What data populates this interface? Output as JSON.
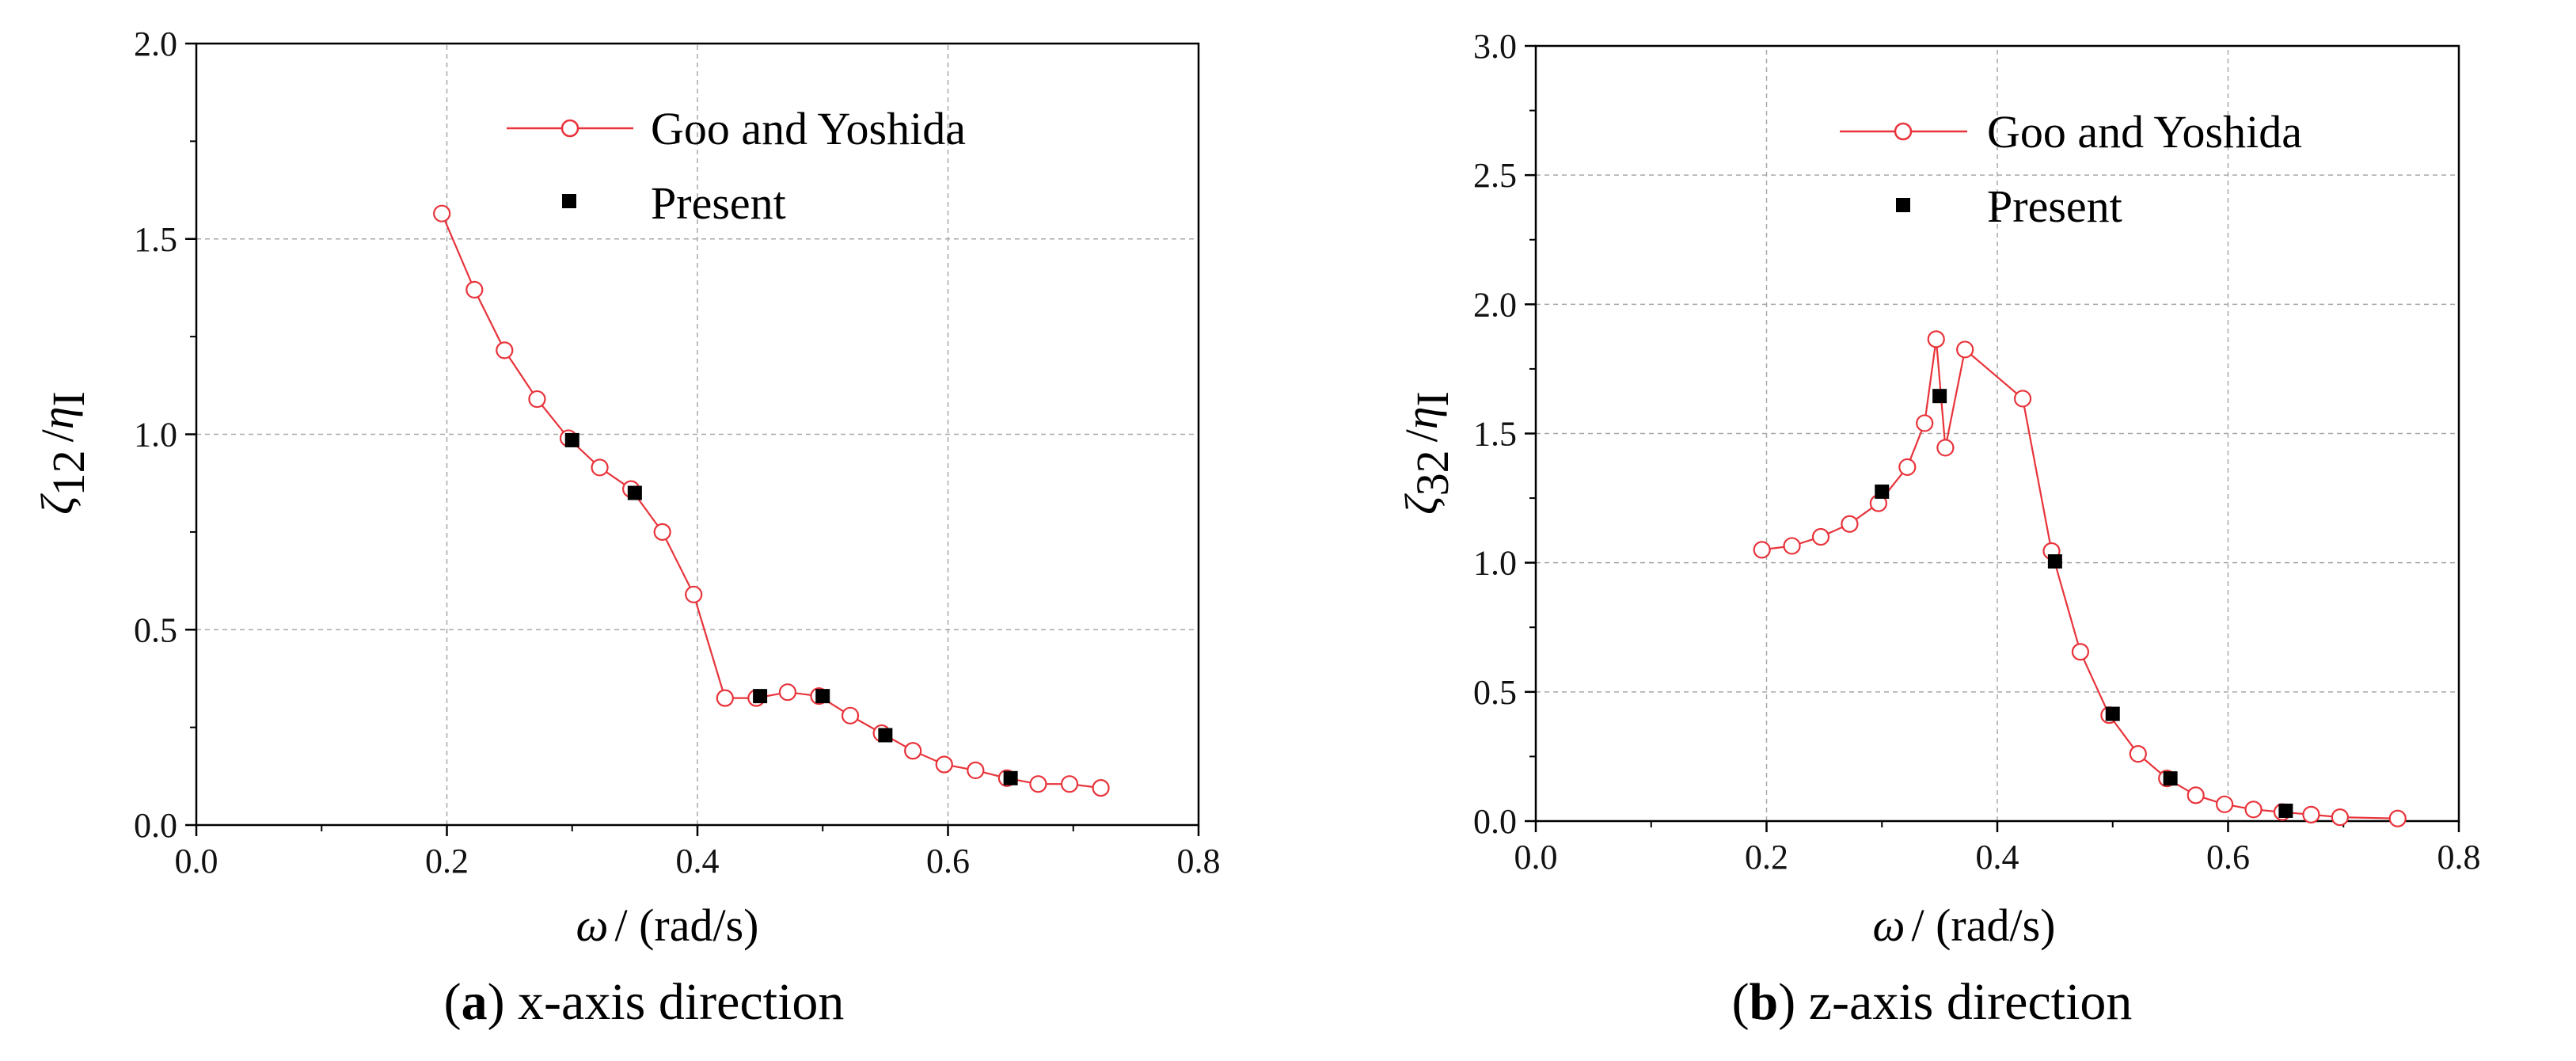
{
  "chart_data": [
    {
      "type": "line",
      "panel_label": "a",
      "caption_text": "x-axis direction",
      "title": "",
      "xlabel_symbol": "ω",
      "xlabel_unit": "/ (rad/s)",
      "ylabel_symbol": "ζ",
      "ylabel_sub": "12",
      "ylabel_div": "/",
      "ylabel_symbol2": "η",
      "ylabel_sub2": "I",
      "xlim": [
        0.0,
        0.8
      ],
      "ylim": [
        0.0,
        2.0
      ],
      "xticks": [
        "0.0",
        "0.2",
        "0.4",
        "0.6",
        "0.8"
      ],
      "yticks": [
        "0.0",
        "0.5",
        "1.0",
        "1.5",
        "2.0"
      ],
      "grid": true,
      "legend_position": "top-right",
      "series": [
        {
          "name": "Goo and Yoshida",
          "color": "#e8333a",
          "marker": "open-circle",
          "x": [
            0.196,
            0.222,
            0.246,
            0.272,
            0.297,
            0.322,
            0.347,
            0.372,
            0.397,
            0.422,
            0.447,
            0.472,
            0.497,
            0.522,
            0.547,
            0.572,
            0.597,
            0.622,
            0.647,
            0.672,
            0.697,
            0.722
          ],
          "y": [
            1.565,
            1.37,
            1.215,
            1.09,
            0.99,
            0.915,
            0.86,
            0.75,
            0.59,
            0.325,
            0.325,
            0.34,
            0.33,
            0.28,
            0.235,
            0.19,
            0.155,
            0.14,
            0.12,
            0.105,
            0.105,
            0.095
          ]
        },
        {
          "name": "Present",
          "color": "#000000",
          "marker": "filled-square",
          "x": [
            0.3,
            0.35,
            0.45,
            0.5,
            0.55,
            0.65
          ],
          "y": [
            0.985,
            0.85,
            0.33,
            0.33,
            0.23,
            0.12
          ]
        }
      ]
    },
    {
      "type": "line",
      "panel_label": "b",
      "caption_text": "z-axis direction",
      "title": "",
      "xlabel_symbol": "ω",
      "xlabel_unit": "/ (rad/s)",
      "ylabel_symbol": "ζ",
      "ylabel_sub": "32",
      "ylabel_div": "/",
      "ylabel_symbol2": "η",
      "ylabel_sub2": "I",
      "xlim": [
        0.0,
        0.8
      ],
      "ylim": [
        0.0,
        3.0
      ],
      "xticks": [
        "0.0",
        "0.2",
        "0.4",
        "0.6",
        "0.8"
      ],
      "yticks": [
        "0.0",
        "0.5",
        "1.0",
        "1.5",
        "2.0",
        "2.5",
        "3.0"
      ],
      "grid": true,
      "legend_position": "top-right",
      "series": [
        {
          "name": "Goo and Yoshida",
          "color": "#e8333a",
          "marker": "open-circle",
          "x": [
            0.196,
            0.222,
            0.247,
            0.272,
            0.297,
            0.322,
            0.337,
            0.347,
            0.355,
            0.372,
            0.422,
            0.447,
            0.472,
            0.497,
            0.522,
            0.547,
            0.572,
            0.597,
            0.622,
            0.647,
            0.672,
            0.697,
            0.747
          ],
          "y": [
            1.05,
            1.065,
            1.1,
            1.15,
            1.23,
            1.37,
            1.54,
            1.865,
            1.445,
            1.825,
            1.635,
            1.045,
            0.655,
            0.41,
            0.26,
            0.165,
            0.1,
            0.065,
            0.045,
            0.035,
            0.025,
            0.015,
            0.01
          ]
        },
        {
          "name": "Present",
          "color": "#000000",
          "marker": "filled-square",
          "x": [
            0.3,
            0.35,
            0.45,
            0.5,
            0.55,
            0.65
          ],
          "y": [
            1.275,
            1.645,
            1.005,
            0.415,
            0.165,
            0.04
          ]
        }
      ]
    }
  ]
}
